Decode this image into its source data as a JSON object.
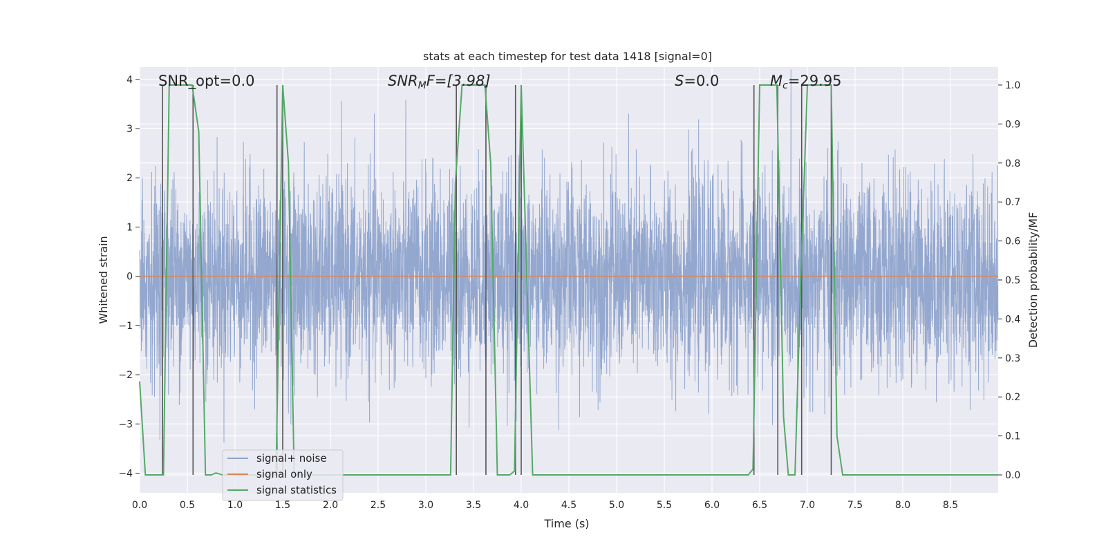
{
  "chart_data": {
    "type": "line",
    "title": "stats at each timestep for test data 1418 [signal=0]",
    "xlabel": "Time (s)",
    "ylabel_left": "Whitened strain",
    "ylabel_right": "Detection probability/MF",
    "xlim": [
      0.0,
      9.0
    ],
    "ylim_left": [
      -4.4,
      4.25
    ],
    "ylim_right": [
      -0.046,
      1.046
    ],
    "x_ticks": [
      0.0,
      0.5,
      1.0,
      1.5,
      2.0,
      2.5,
      3.0,
      3.5,
      4.0,
      4.5,
      5.0,
      5.5,
      6.0,
      6.5,
      7.0,
      7.5,
      8.0,
      8.5
    ],
    "x_tick_labels": [
      "0.0",
      "0.5",
      "1.0",
      "1.5",
      "2.0",
      "2.5",
      "3.0",
      "3.5",
      "4.0",
      "4.5",
      "5.0",
      "5.5",
      "6.0",
      "6.5",
      "7.0",
      "7.5",
      "8.0",
      "8.5"
    ],
    "y_left_ticks": [
      4,
      3,
      2,
      1,
      0,
      -1,
      -2,
      -3,
      -4
    ],
    "y_left_tick_labels": [
      "4",
      "3",
      "2",
      "1",
      "0",
      "−1",
      "−2",
      "−3",
      "−4"
    ],
    "y_right_ticks": [
      1.0,
      0.9,
      0.8,
      0.7,
      0.6,
      0.5,
      0.4,
      0.3,
      0.2,
      0.1,
      0.0
    ],
    "y_right_tick_labels": [
      "1.0",
      "0.9",
      "0.8",
      "0.7",
      "0.6",
      "0.5",
      "0.4",
      "0.3",
      "0.2",
      "0.1",
      "0.0"
    ],
    "grid": true,
    "legend_position": "lower-left",
    "annotations": {
      "snr_opt": "SNR_opt=0.0",
      "snr_mf_sym": "SNR",
      "snr_mf_sub": "M",
      "snr_mf_rest": "F=[3.98]",
      "s_sym": "S",
      "s_rest": "=0.0",
      "mc_sym": "M",
      "mc_sub": "c",
      "mc_rest": "=29.95"
    },
    "series": [
      {
        "name": "signal+ noise",
        "color": "#8fa4cc",
        "kind": "noise",
        "sample_rate": 500,
        "std": 1.0,
        "seed": 1418
      },
      {
        "name": "signal only",
        "color": "#dd8452",
        "x": [
          0.0,
          9.0
        ],
        "y": [
          0.0,
          0.0
        ]
      },
      {
        "name": "signal statistics",
        "color": "#55a868",
        "axis": "right",
        "x": [
          0.0,
          0.06,
          0.25,
          0.31,
          0.55,
          0.62,
          0.69,
          0.75,
          0.8,
          0.87,
          1.43,
          1.5,
          1.56,
          1.62,
          3.26,
          3.31,
          3.38,
          3.62,
          3.68,
          3.75,
          3.88,
          3.93,
          4.0,
          4.12,
          6.38,
          6.43,
          6.5,
          6.68,
          6.75,
          6.8,
          6.87,
          6.93,
          7.0,
          7.25,
          7.31,
          7.37,
          9.0
        ],
        "y": [
          0.24,
          0.0,
          0.0,
          1.0,
          1.0,
          0.88,
          0.0,
          0.0,
          0.005,
          0.0,
          0.0,
          1.0,
          0.8,
          0.0,
          0.0,
          0.75,
          1.0,
          1.0,
          0.8,
          0.0,
          0.0,
          0.01,
          1.0,
          0.0,
          0.0,
          0.015,
          1.0,
          1.0,
          0.15,
          0.0,
          0.0,
          0.5,
          1.0,
          1.0,
          0.1,
          0.0,
          0.0
        ]
      }
    ],
    "vertical_markers": [
      0.24,
      0.56,
      1.44,
      1.5,
      3.32,
      3.63,
      3.94,
      4.0,
      6.44,
      6.69,
      6.94,
      7.25
    ],
    "vertical_marker_color": "#555555"
  },
  "legend": {
    "items": [
      {
        "label": "signal+ noise",
        "color": "#8fa4cc"
      },
      {
        "label": "signal only",
        "color": "#dd8452"
      },
      {
        "label": "signal statistics",
        "color": "#55a868"
      }
    ]
  },
  "colors": {
    "plot_background": "#eaeaf2",
    "grid": "#ffffff",
    "figure_background": "#ffffff"
  }
}
